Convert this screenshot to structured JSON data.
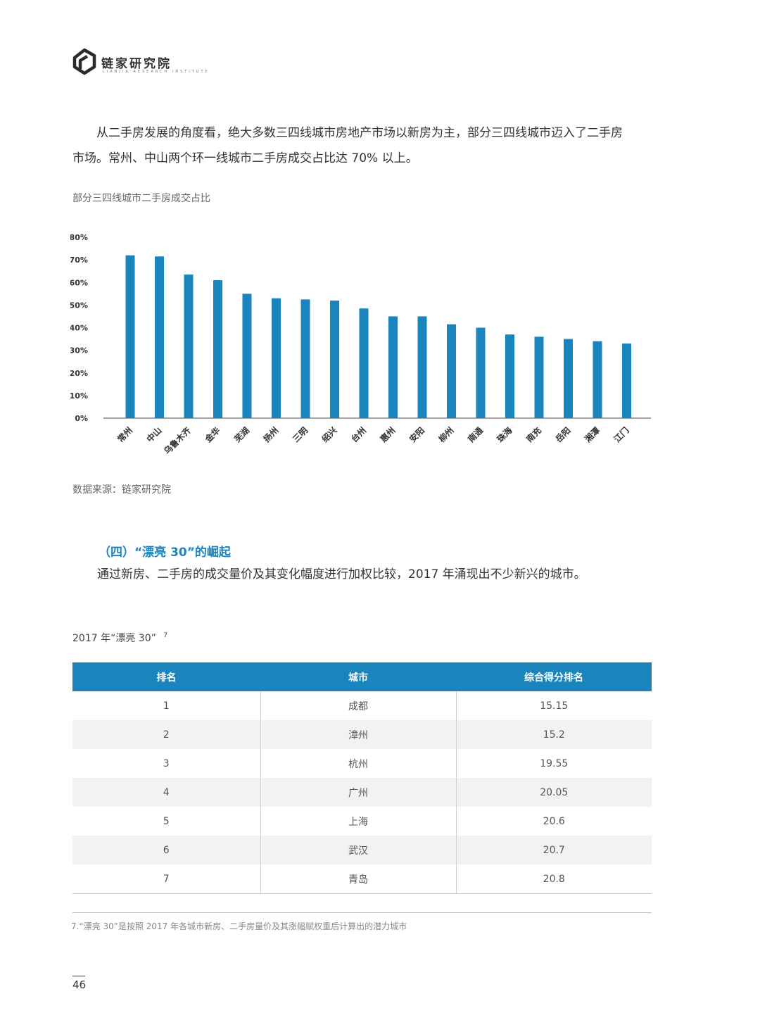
{
  "header": {
    "brand_name": "链家研究院",
    "brand_subtitle": "LIANJIA RESEARCH INSTITUTE"
  },
  "intro": {
    "line1": "从二手房发展的角度看，绝大多数三四线城市房地产市场以新房为主，部分三四线城市迈入了二手房",
    "line2": "市场。常州、中山两个环一线城市二手房成交占比达 70% 以上。"
  },
  "chart_caption": "部分三四线城市二手房成交占比",
  "chart_data": {
    "type": "bar",
    "title": "",
    "xlabel": "",
    "ylabel": "",
    "categories": [
      "常州",
      "中山",
      "乌鲁木齐",
      "金华",
      "芜湖",
      "扬州",
      "三明",
      "绍兴",
      "台州",
      "惠州",
      "安阳",
      "柳州",
      "南通",
      "珠海",
      "南充",
      "岳阳",
      "湘潭",
      "江门"
    ],
    "values": [
      72,
      71.5,
      63.5,
      61,
      55,
      53,
      52.5,
      52,
      48.5,
      45,
      45,
      41.5,
      40,
      37,
      36,
      35,
      34,
      33
    ],
    "yticks": [
      "0%",
      "10%",
      "20%",
      "30%",
      "40%",
      "50%",
      "60%",
      "70%",
      "80%"
    ],
    "ylim": [
      0,
      80
    ],
    "bar_color": "#1a84bd",
    "grid": false
  },
  "source_note": "数据来源：链家研究院",
  "section": {
    "heading": "（四）“漂亮 30”的崛起",
    "body": "通过新房、二手房的成交量价及其变化幅度进行加权比较，2017 年涌现出不少新兴的城市。"
  },
  "table_caption": {
    "text": "2017 年“漂亮 30”",
    "sup": "7"
  },
  "table": {
    "headers": [
      "排名",
      "城市",
      "综合得分排名"
    ],
    "rows": [
      [
        "1",
        "成都",
        "15.15"
      ],
      [
        "2",
        "漳州",
        "15.2"
      ],
      [
        "3",
        "杭州",
        "19.55"
      ],
      [
        "4",
        "广州",
        "20.05"
      ],
      [
        "5",
        "上海",
        "20.6"
      ],
      [
        "6",
        "武汉",
        "20.7"
      ],
      [
        "7",
        "青岛",
        "20.8"
      ]
    ]
  },
  "footnote": "7.“漂亮 30”是按照 2017 年各城市新房、二手房量价及其涨幅赋权重后计算出的潜力城市",
  "page_number": "46",
  "colors": {
    "accent": "#1a84bd"
  }
}
